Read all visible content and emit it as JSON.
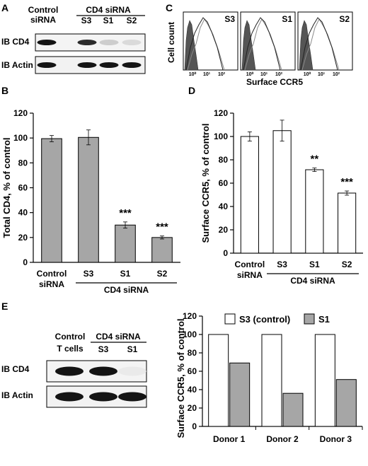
{
  "panels": {
    "A": {
      "letter": "A",
      "col_control": [
        "Control",
        "siRNA"
      ],
      "group_label": "CD4 siRNA",
      "lanes": [
        "S3",
        "S1",
        "S2"
      ],
      "rows": [
        {
          "label": "IB CD4",
          "intensity": [
            1.0,
            0.9,
            0.18,
            0.12
          ]
        },
        {
          "label": "IB Actin",
          "intensity": [
            1.0,
            1.0,
            1.0,
            1.0
          ]
        }
      ]
    },
    "C": {
      "letter": "C",
      "ylabel": "Cell count",
      "xlabel": "Surface CCR5",
      "ticks": [
        "10⁰",
        "10¹",
        "10²"
      ],
      "histograms": [
        {
          "tag": "S3"
        },
        {
          "tag": "S1"
        },
        {
          "tag": "S2"
        }
      ]
    },
    "E": {
      "letter": "E",
      "col_control": [
        "Control",
        "T cells"
      ],
      "group_label": "CD4 siRNA",
      "lanes": [
        "S3",
        "S1"
      ],
      "rows": [
        {
          "label": "IB CD4",
          "intensity": [
            1.0,
            1.0,
            0.05
          ]
        },
        {
          "label": "IB Actin",
          "intensity": [
            1.0,
            1.0,
            1.0
          ]
        }
      ]
    }
  },
  "chart_data": [
    {
      "panel": "B",
      "type": "bar",
      "categories": [
        "Control\nsiRNA",
        "S3",
        "S1",
        "S2"
      ],
      "values": [
        99.5,
        100.5,
        30,
        20
      ],
      "errors": [
        2.5,
        6,
        2.5,
        1.2
      ],
      "annotations": [
        "",
        "",
        "***",
        "***"
      ],
      "group_label": "CD4 siRNA",
      "ylabel": "Total CD4, % of control",
      "ylim": [
        0,
        120
      ],
      "yticks": [
        0,
        20,
        40,
        60,
        80,
        100,
        120
      ],
      "bar_color": "#a6a6a6"
    },
    {
      "panel": "D",
      "type": "bar",
      "categories": [
        "Control\nsiRNA",
        "S3",
        "S1",
        "S2"
      ],
      "values": [
        100,
        105,
        71.5,
        51.5
      ],
      "errors": [
        4,
        9,
        1.5,
        1.8
      ],
      "annotations": [
        "",
        "",
        "**",
        "***"
      ],
      "group_label": "CD4 siRNA",
      "ylabel": "Surface CCR5, % of control",
      "ylim": [
        0,
        120
      ],
      "yticks": [
        0,
        20,
        40,
        60,
        80,
        100,
        120
      ],
      "bar_color": "#ffffff"
    },
    {
      "panel": "E",
      "type": "bar",
      "categories": [
        "Donor 1",
        "Donor 2",
        "Donor 3"
      ],
      "series": [
        {
          "name": "S3 (control)",
          "values": [
            100,
            100,
            100
          ],
          "color": "#ffffff"
        },
        {
          "name": "S1",
          "values": [
            69,
            36,
            51
          ],
          "color": "#a6a6a6"
        }
      ],
      "ylabel": "Surface CCR5, % of control",
      "ylim": [
        0,
        120
      ],
      "yticks": [
        0,
        20,
        40,
        60,
        80,
        100,
        120
      ],
      "legend": "top"
    }
  ]
}
